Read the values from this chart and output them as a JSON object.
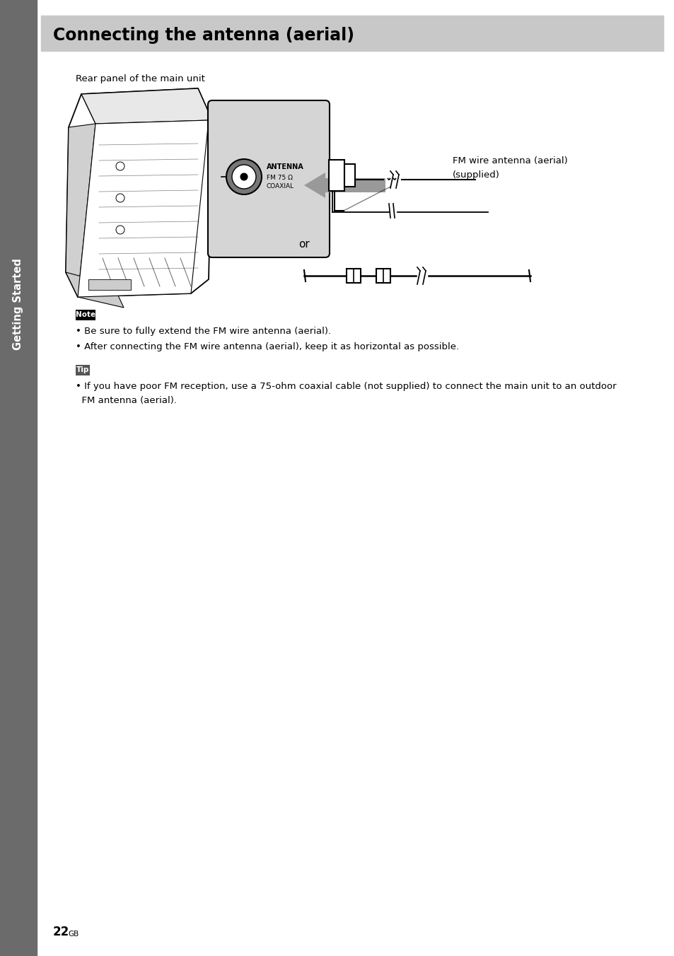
{
  "title": "Connecting the antenna (aerial)",
  "title_bg": "#c8c8c8",
  "page_bg": "#ffffff",
  "sidebar_bg": "#6b6b6b",
  "sidebar_text": "Getting Started",
  "rear_panel_label": "Rear panel of the main unit",
  "antenna_label_line1": "ANTENNA",
  "antenna_label_line2": "FM 75 Ω",
  "antenna_label_line3": "COAXIAL",
  "fm_wire_label_line1": "FM wire antenna (aerial)",
  "fm_wire_label_line2": "(supplied)",
  "or_text": "or",
  "note_label": "Note",
  "note_bullet1": "Be sure to fully extend the FM wire antenna (aerial).",
  "note_bullet2": "After connecting the FM wire antenna (aerial), keep it as horizontal as possible.",
  "tip_label": "Tip",
  "tip_line1": "• If you have poor FM reception, use a 75-ohm coaxial cable (not supplied) to connect the main unit to an outdoor",
  "tip_line2": "  FM antenna (aerial).",
  "page_number": "22",
  "page_suffix": "GB",
  "fig_width": 9.54,
  "fig_height": 13.52,
  "dpi": 100
}
